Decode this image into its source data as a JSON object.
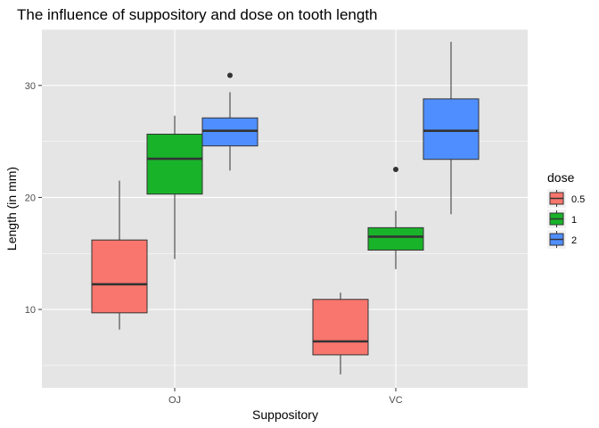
{
  "chart_data": {
    "type": "boxplot",
    "title": "The influence of suppository and dose on tooth length",
    "xlabel": "Suppository",
    "ylabel": "Length (in mm)",
    "categories": [
      "OJ",
      "VC"
    ],
    "ylim": [
      3.0,
      35.0
    ],
    "yticks": [
      10,
      20,
      30
    ],
    "grid": true,
    "legend": {
      "title": "dose",
      "position": "right"
    },
    "series": [
      {
        "name": "0.5",
        "color": "#F8766D",
        "boxes": [
          {
            "category": "OJ",
            "whisker_low": 8.2,
            "q1": 9.7,
            "median": 12.25,
            "q3": 16.2,
            "whisker_high": 21.5,
            "outliers": []
          },
          {
            "category": "VC",
            "whisker_low": 4.2,
            "q1": 5.95,
            "median": 7.15,
            "q3": 10.9,
            "whisker_high": 11.5,
            "outliers": []
          }
        ]
      },
      {
        "name": "1",
        "color": "#19B32A",
        "boxes": [
          {
            "category": "OJ",
            "whisker_low": 14.5,
            "q1": 20.3,
            "median": 23.45,
            "q3": 25.65,
            "whisker_high": 27.3,
            "outliers": []
          },
          {
            "category": "VC",
            "whisker_low": 13.6,
            "q1": 15.3,
            "median": 16.5,
            "q3": 17.3,
            "whisker_high": 18.8,
            "outliers": [
              22.5
            ]
          }
        ]
      },
      {
        "name": "2",
        "color": "#4F8EFF",
        "boxes": [
          {
            "category": "OJ",
            "whisker_low": 22.4,
            "q1": 24.6,
            "median": 25.95,
            "q3": 27.1,
            "whisker_high": 29.4,
            "outliers": [
              30.9
            ]
          },
          {
            "category": "VC",
            "whisker_low": 18.5,
            "q1": 23.4,
            "median": 25.95,
            "q3": 28.8,
            "whisker_high": 33.9,
            "outliers": []
          }
        ]
      }
    ]
  }
}
